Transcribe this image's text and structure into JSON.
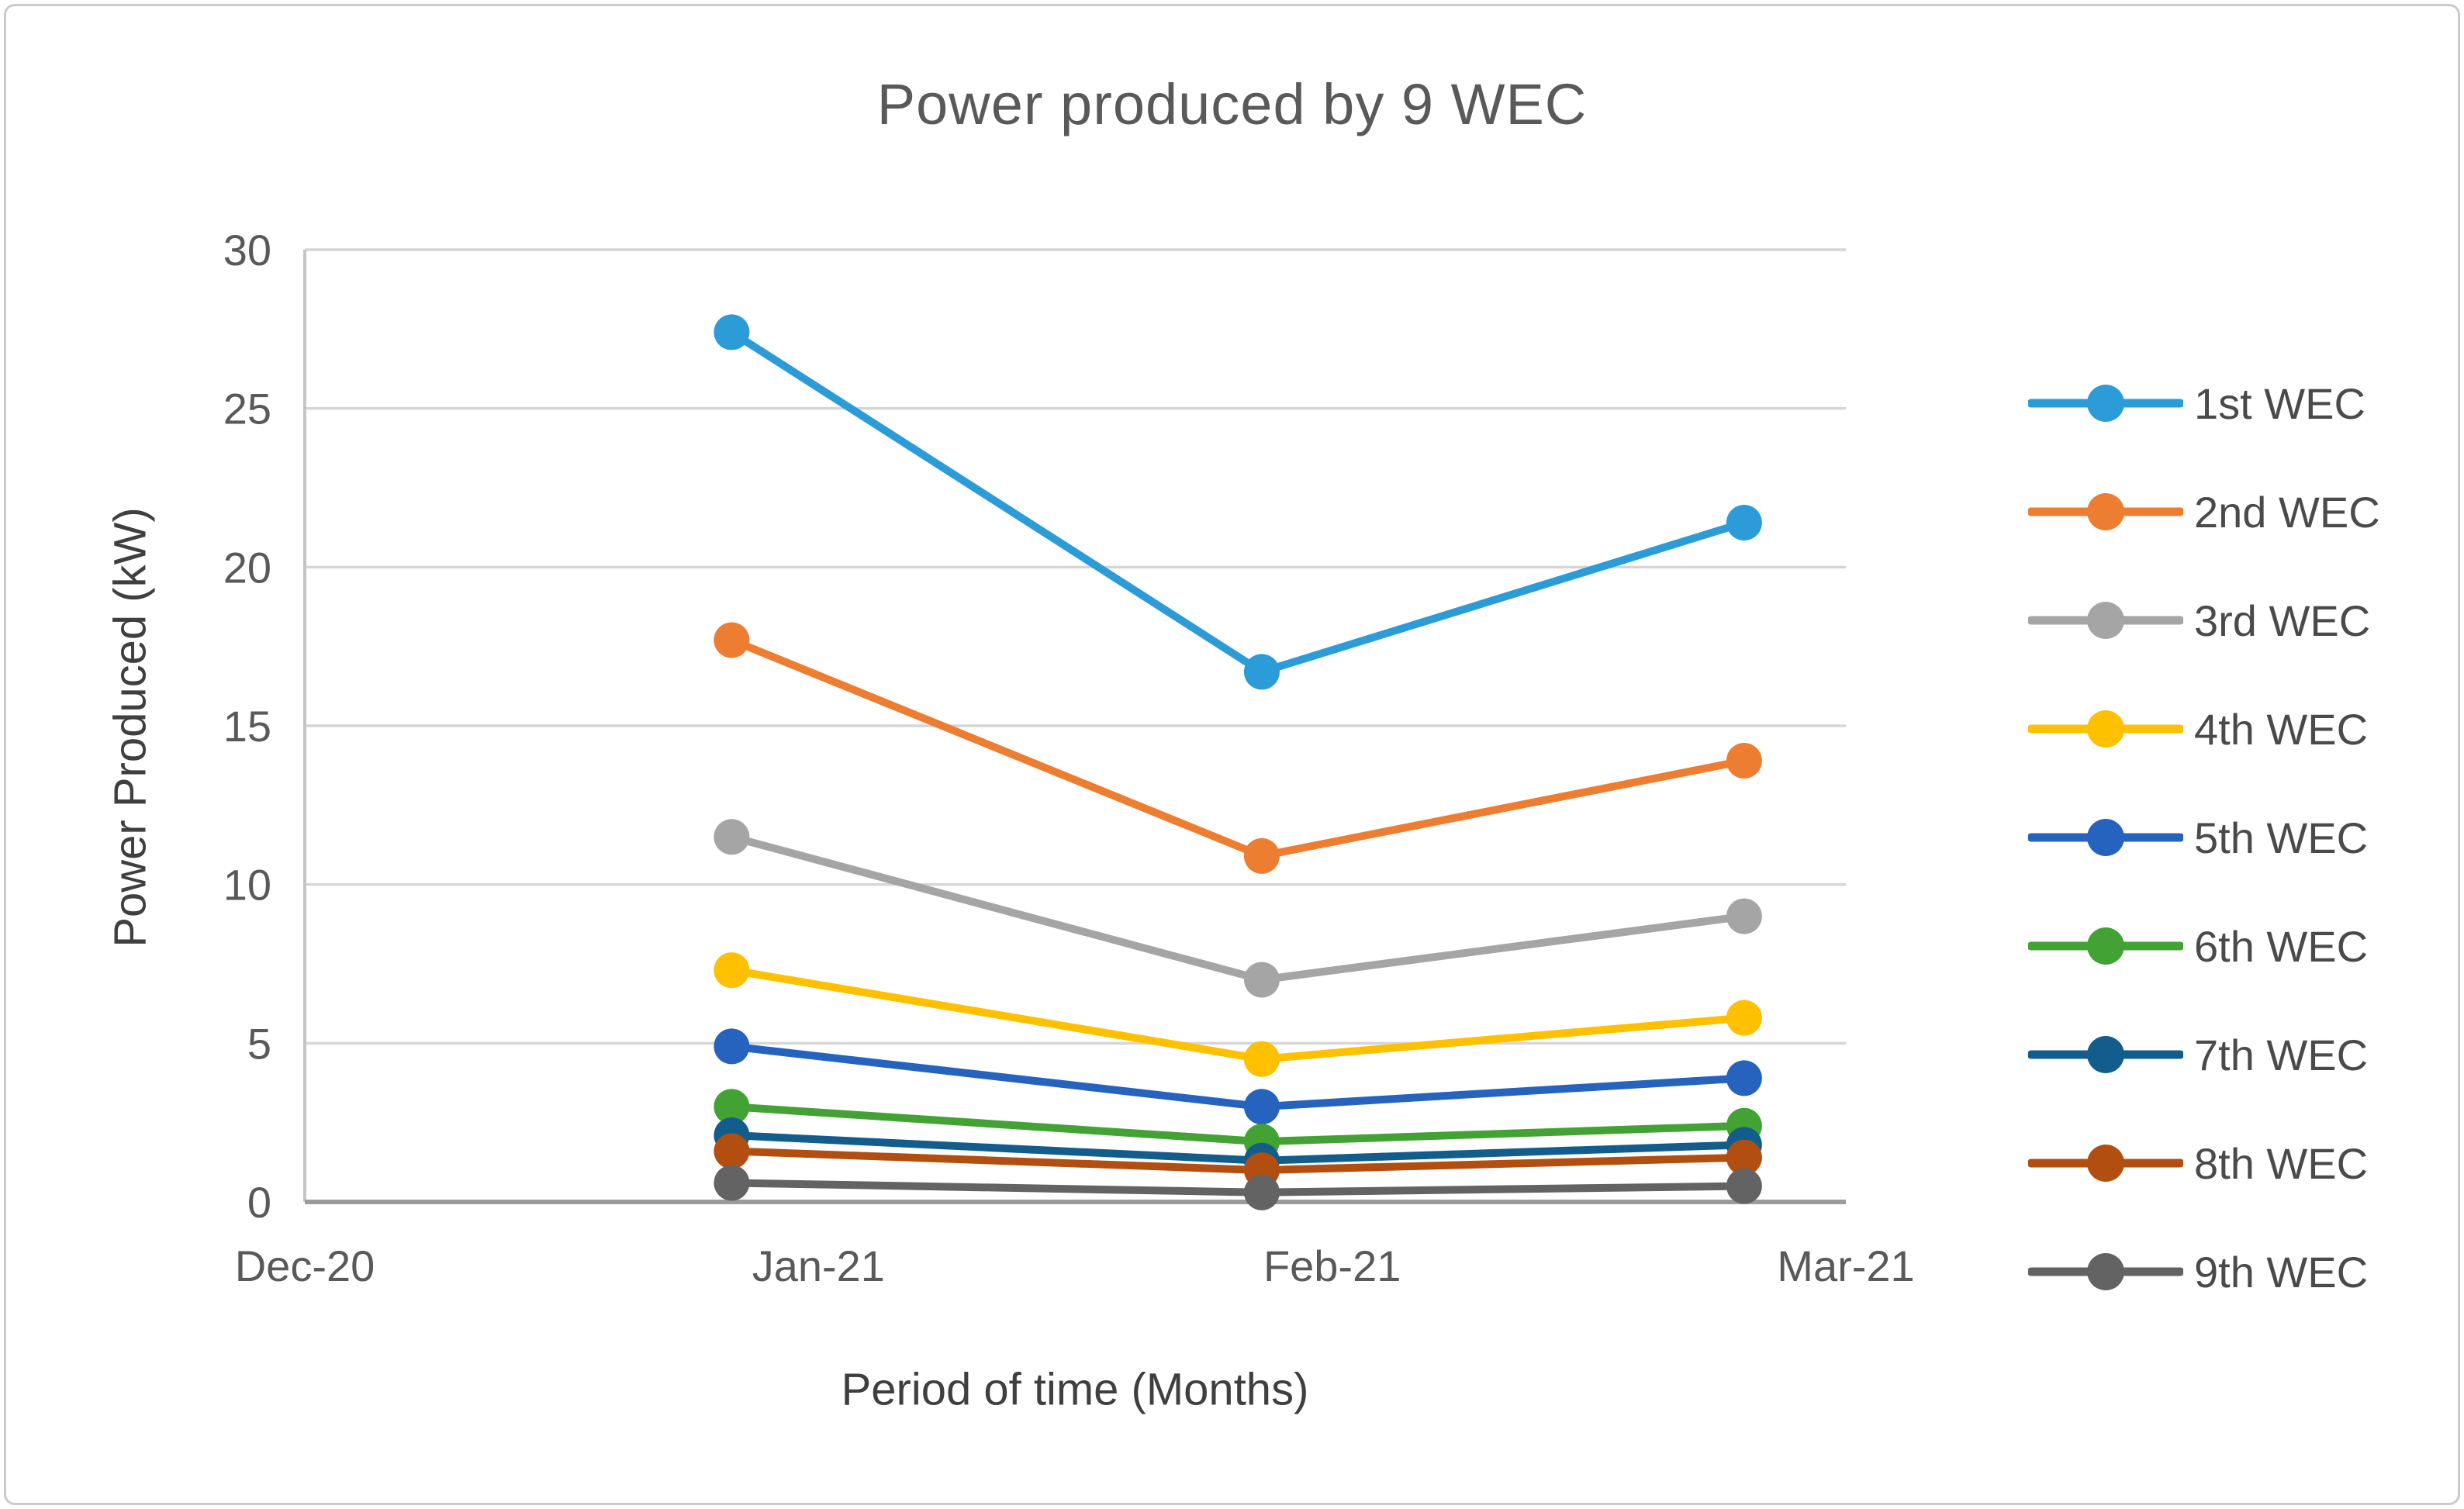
{
  "chart_data": {
    "type": "line",
    "title": "Power produced by 9 WEC",
    "xlabel": "Period of time (Months)",
    "ylabel": "Power Produced (kW)",
    "ylim": [
      0,
      30
    ],
    "y_ticks": [
      0,
      5,
      10,
      15,
      20,
      25,
      30
    ],
    "categories": [
      "Dec-20",
      "Jan-21",
      "Feb-21",
      "Mar-21"
    ],
    "series": [
      {
        "name": "1st WEC",
        "color": "#2b9cd8",
        "values": [
          null,
          27.4,
          16.7,
          21.4
        ]
      },
      {
        "name": "2nd WEC",
        "color": "#ed7d31",
        "values": [
          null,
          17.7,
          10.9,
          13.9
        ]
      },
      {
        "name": "3rd WEC",
        "color": "#a5a5a5",
        "values": [
          null,
          11.5,
          7.0,
          9.0
        ]
      },
      {
        "name": "4th WEC",
        "color": "#ffc000",
        "values": [
          null,
          7.3,
          4.5,
          5.8
        ]
      },
      {
        "name": "5th WEC",
        "color": "#2563be",
        "values": [
          null,
          4.9,
          3.0,
          3.9
        ]
      },
      {
        "name": "6th WEC",
        "color": "#43a234",
        "values": [
          null,
          3.0,
          1.9,
          2.4
        ]
      },
      {
        "name": "7th WEC",
        "color": "#135d8c",
        "values": [
          null,
          2.1,
          1.3,
          1.8
        ]
      },
      {
        "name": "8th WEC",
        "color": "#b24e10",
        "values": [
          null,
          1.6,
          1.0,
          1.4
        ]
      },
      {
        "name": "9th WEC",
        "color": "#636363",
        "values": [
          null,
          0.6,
          0.3,
          0.5
        ]
      }
    ],
    "legend_position": "right",
    "grid": "horizontal",
    "style": {
      "title_color": "#595959",
      "axis_title_color": "#3f3f3f",
      "tick_label_color": "#595959",
      "legend_text_color": "#4a4a4a",
      "gridline_color": "#d6d6d6",
      "left_axis_color": "#c4c4c4",
      "bottom_axis_color": "#9b9b9b",
      "border_color": "#cbcbcb",
      "background": "#ffffff"
    }
  }
}
